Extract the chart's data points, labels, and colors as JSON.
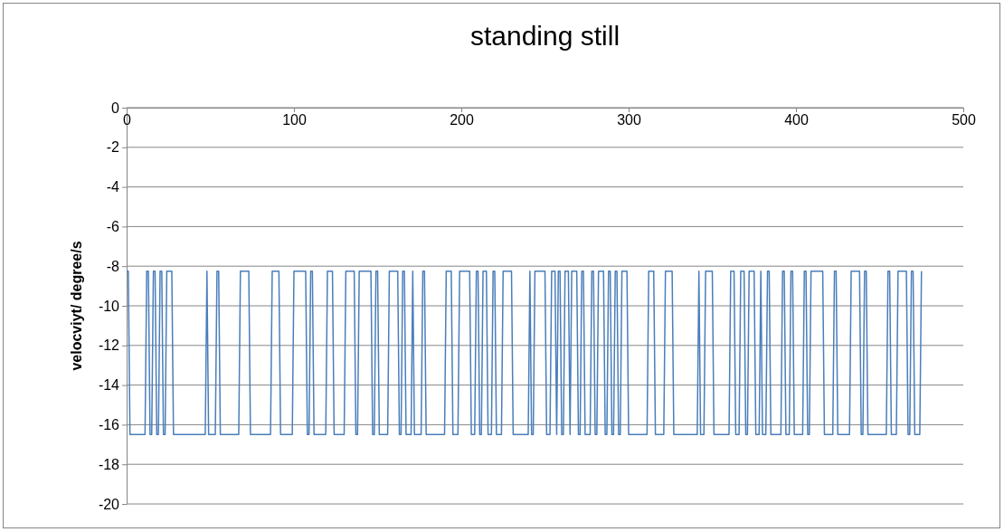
{
  "chart_data": {
    "type": "line",
    "title": "standing still",
    "ylabel": "velocviyt/ degree/s",
    "xlim": [
      0,
      500
    ],
    "xticks": [
      0,
      100,
      200,
      300,
      400,
      500
    ],
    "ylim": [
      -20,
      0
    ],
    "yticks": [
      -20,
      -18,
      -16,
      -14,
      -12,
      -10,
      -8,
      -6,
      -4,
      -2,
      0
    ],
    "grid": "y",
    "legend": false,
    "marker": "none",
    "line_style": "solid",
    "series": [
      {
        "color": "#4a7ebb",
        "x": [
          0,
          1,
          2,
          11,
          12,
          13,
          14,
          15,
          16,
          17,
          18,
          19,
          20,
          21,
          22,
          23,
          24,
          27,
          28,
          47,
          48,
          49,
          53,
          54,
          55,
          56,
          67,
          68,
          73,
          74,
          86,
          87,
          91,
          92,
          99,
          100,
          107,
          108,
          109,
          110,
          111,
          112,
          119,
          120,
          123,
          124,
          130,
          131,
          136,
          137,
          138,
          139,
          146,
          147,
          148,
          149,
          150,
          151,
          156,
          157,
          162,
          163,
          164,
          165,
          166,
          167,
          170,
          171,
          172,
          176,
          177,
          178,
          179,
          190,
          191,
          194,
          195,
          198,
          199,
          205,
          206,
          208,
          209,
          210,
          211,
          212,
          213,
          215,
          216,
          218,
          219,
          220,
          221,
          224,
          225,
          230,
          231,
          240,
          241,
          242,
          243,
          244,
          250,
          251,
          253,
          254,
          256,
          257,
          258,
          259,
          260,
          261,
          262,
          264,
          265,
          266,
          269,
          270,
          271,
          272,
          273,
          274,
          277,
          278,
          279,
          280,
          281,
          282,
          285,
          286,
          287,
          288,
          289,
          290,
          291,
          292,
          293,
          294,
          295,
          296,
          299,
          300,
          311,
          312,
          315,
          316,
          321,
          322,
          326,
          327,
          341,
          342,
          343,
          345,
          346,
          350,
          351,
          360,
          361,
          363,
          364,
          366,
          367,
          369,
          370,
          371,
          372,
          375,
          376,
          378,
          379,
          380,
          382,
          383,
          384,
          385,
          391,
          392,
          393,
          394,
          396,
          397,
          398,
          399,
          404,
          405,
          406,
          407,
          408,
          409,
          416,
          417,
          422,
          423,
          424,
          425,
          432,
          433,
          438,
          439,
          440,
          441,
          442,
          443,
          454,
          455,
          456,
          457,
          460,
          461,
          466,
          467,
          468,
          469,
          470,
          471,
          474,
          475
        ],
        "values": [
          -8.25,
          -8.25,
          -16.5,
          -16.5,
          -8.25,
          -8.25,
          -16.5,
          -16.5,
          -8.25,
          -8.25,
          -16.5,
          -16.5,
          -8.25,
          -8.25,
          -16.5,
          -16.5,
          -8.25,
          -8.25,
          -16.5,
          -16.5,
          -8.25,
          -16.5,
          -16.5,
          -8.25,
          -8.25,
          -16.5,
          -16.5,
          -8.25,
          -8.25,
          -16.5,
          -16.5,
          -8.25,
          -8.25,
          -16.5,
          -16.5,
          -8.25,
          -8.25,
          -16.5,
          -16.5,
          -8.25,
          -8.25,
          -16.5,
          -16.5,
          -8.25,
          -8.25,
          -16.5,
          -16.5,
          -8.25,
          -8.25,
          -16.5,
          -16.5,
          -8.25,
          -8.25,
          -16.5,
          -16.5,
          -8.25,
          -8.25,
          -16.5,
          -16.5,
          -8.25,
          -8.25,
          -16.5,
          -16.5,
          -8.25,
          -8.25,
          -16.5,
          -16.5,
          -8.25,
          -16.5,
          -16.5,
          -8.25,
          -8.25,
          -16.5,
          -16.5,
          -8.25,
          -8.25,
          -16.5,
          -16.5,
          -8.25,
          -8.25,
          -16.5,
          -16.5,
          -8.25,
          -8.25,
          -16.5,
          -16.5,
          -8.25,
          -8.25,
          -16.5,
          -16.5,
          -8.25,
          -8.25,
          -16.5,
          -16.5,
          -8.25,
          -8.25,
          -16.5,
          -16.5,
          -8.25,
          -16.5,
          -16.5,
          -8.25,
          -8.25,
          -16.5,
          -16.5,
          -8.25,
          -8.25,
          -16.5,
          -8.25,
          -8.25,
          -16.5,
          -16.5,
          -8.25,
          -8.25,
          -16.5,
          -8.25,
          -8.25,
          -16.5,
          -16.5,
          -8.25,
          -8.25,
          -16.5,
          -16.5,
          -8.25,
          -8.25,
          -16.5,
          -16.5,
          -8.25,
          -8.25,
          -16.5,
          -16.5,
          -8.25,
          -8.25,
          -16.5,
          -16.5,
          -8.25,
          -8.25,
          -16.5,
          -16.5,
          -8.25,
          -8.25,
          -16.5,
          -16.5,
          -8.25,
          -8.25,
          -16.5,
          -16.5,
          -8.25,
          -8.25,
          -16.5,
          -16.5,
          -8.25,
          -16.5,
          -16.5,
          -8.25,
          -8.25,
          -16.5,
          -16.5,
          -8.25,
          -8.25,
          -16.5,
          -16.5,
          -8.25,
          -8.25,
          -16.5,
          -16.5,
          -8.25,
          -8.25,
          -16.5,
          -16.5,
          -8.25,
          -16.5,
          -16.5,
          -8.25,
          -8.25,
          -16.5,
          -16.5,
          -8.25,
          -8.25,
          -16.5,
          -16.5,
          -8.25,
          -8.25,
          -16.5,
          -16.5,
          -8.25,
          -8.25,
          -16.5,
          -16.5,
          -8.25,
          -8.25,
          -16.5,
          -16.5,
          -8.25,
          -8.25,
          -16.5,
          -16.5,
          -8.25,
          -8.25,
          -16.5,
          -16.5,
          -8.25,
          -8.25,
          -16.5,
          -16.5,
          -8.25,
          -8.25,
          -16.5,
          -16.5,
          -8.25,
          -8.25,
          -16.5,
          -16.5,
          -8.25,
          -8.25,
          -16.5,
          -16.5,
          -8.25
        ]
      }
    ]
  }
}
